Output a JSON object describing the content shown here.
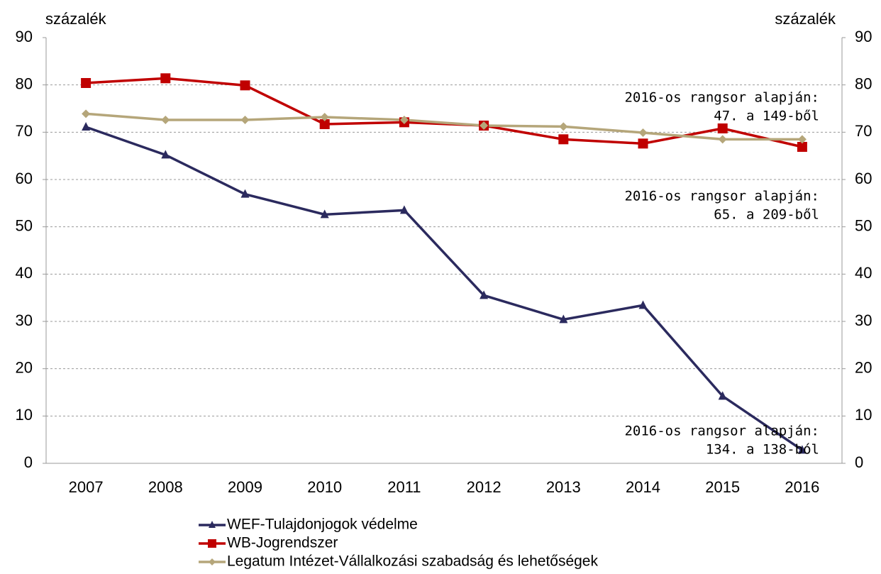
{
  "chart_data": {
    "type": "line",
    "y_label": "százalék",
    "y2_label": "százalék",
    "categories": [
      "2007",
      "2008",
      "2009",
      "2010",
      "2011",
      "2012",
      "2013",
      "2014",
      "2015",
      "2016"
    ],
    "series": [
      {
        "name": "WEF-Tulajdonjogok védelme",
        "color": "#2b2a5e",
        "marker": "triangle",
        "values": [
          71.1,
          65.2,
          56.9,
          52.6,
          53.5,
          35.5,
          30.4,
          33.4,
          14.2,
          2.8
        ]
      },
      {
        "name": "WB-Jogrendszer",
        "color": "#c00000",
        "marker": "square",
        "values": [
          80.4,
          81.4,
          79.9,
          71.7,
          72.1,
          71.4,
          68.5,
          67.6,
          70.8,
          66.9
        ]
      },
      {
        "name": "Legatum Intézet-Vállalkozási szabadság és lehetőségek",
        "color": "#b5a67a",
        "marker": "diamond",
        "values": [
          73.9,
          72.6,
          72.6,
          73.2,
          72.6,
          71.4,
          71.2,
          69.9,
          68.5,
          68.5
        ]
      }
    ],
    "annotations": [
      {
        "lines": [
          "2016-os rangsor alapján:",
          "47. a 149-ből"
        ],
        "color": "#b5a67a"
      },
      {
        "lines": [
          "2016-os rangsor alapján:",
          "65. a 209-ből"
        ],
        "color": "#c00000"
      },
      {
        "lines": [
          "2016-os rangsor alapján:",
          "134. a 138-ból"
        ],
        "color": "#2b2a5e"
      }
    ],
    "ylim": [
      0,
      90
    ],
    "yticks": [
      0,
      10,
      20,
      30,
      40,
      50,
      60,
      70,
      80,
      90
    ],
    "y2lim": [
      0,
      90
    ],
    "y2ticks": [
      0,
      10,
      20,
      30,
      40,
      50,
      60,
      70,
      80,
      90
    ],
    "grid": true,
    "legend": "bottom"
  }
}
